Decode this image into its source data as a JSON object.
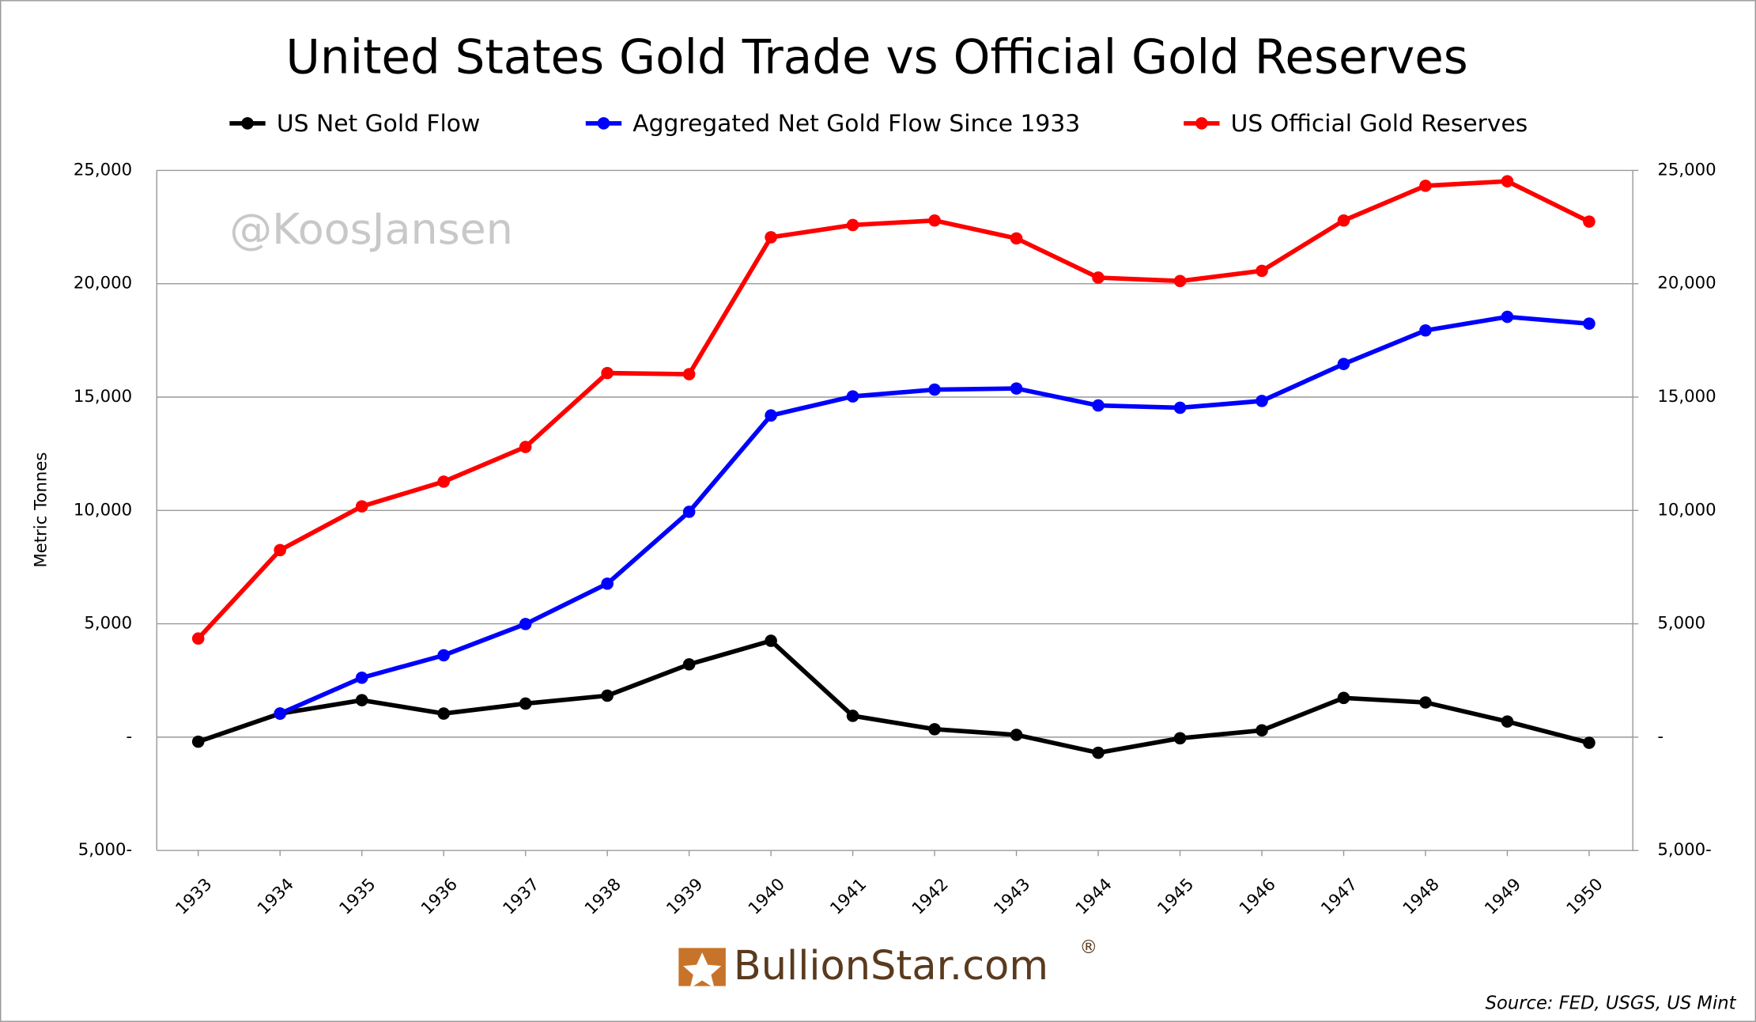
{
  "chart_data": {
    "type": "line",
    "title": "United States Gold Trade vs Official Gold Reserves",
    "y_label": "Metric Tonnes",
    "watermark": "@KoosJansen",
    "logo": "BullionStar.com",
    "logo_mark": "®",
    "source": "Source: FED, USGS, US Mint",
    "categories": [
      "1933",
      "1934",
      "1935",
      "1936",
      "1937",
      "1938",
      "1939",
      "1940",
      "1941",
      "1942",
      "1943",
      "1944",
      "1945",
      "1946",
      "1947",
      "1948",
      "1949",
      "1950"
    ],
    "series": [
      {
        "name": "US Net Gold Flow",
        "color": "#000000",
        "values": [
          -200,
          1040,
          1630,
          1040,
          1480,
          1830,
          3210,
          4250,
          940,
          350,
          100,
          -690,
          -50,
          300,
          1730,
          1530,
          690,
          -250
        ]
      },
      {
        "name": "Aggregated Net Gold Flow Since 1933",
        "color": "#0000ff",
        "values": [
          null,
          1040,
          2620,
          3610,
          4990,
          6770,
          9940,
          14190,
          15030,
          15330,
          15380,
          14630,
          14530,
          14830,
          16460,
          17940,
          18540,
          18240
        ]
      },
      {
        "name": "US Official Gold Reserves",
        "color": "#ff0000",
        "values": [
          4350,
          8250,
          10180,
          11270,
          12800,
          16060,
          16010,
          22050,
          22590,
          22790,
          22000,
          20270,
          20120,
          20570,
          22790,
          24320,
          24520,
          22740
        ]
      }
    ],
    "ylim": [
      -5000,
      25000
    ],
    "yticks": [
      {
        "value": 25000,
        "label": "25,000"
      },
      {
        "value": 20000,
        "label": "20,000"
      },
      {
        "value": 15000,
        "label": "15,000"
      },
      {
        "value": 10000,
        "label": "10,000"
      },
      {
        "value": 5000,
        "label": "5,000"
      },
      {
        "value": 0,
        "label": "-"
      },
      {
        "value": -5000,
        "label": "5,000-"
      }
    ],
    "y2lim": [
      -5000,
      25000
    ],
    "y2ticks": [
      {
        "value": 25000,
        "label": "25,000"
      },
      {
        "value": 20000,
        "label": "20,000"
      },
      {
        "value": 15000,
        "label": "15,000"
      },
      {
        "value": 10000,
        "label": "10,000"
      },
      {
        "value": 5000,
        "label": "5,000"
      },
      {
        "value": 0,
        "label": "-"
      },
      {
        "value": -5000,
        "label": "5,000-"
      }
    ],
    "grid": true,
    "legend": "top"
  }
}
